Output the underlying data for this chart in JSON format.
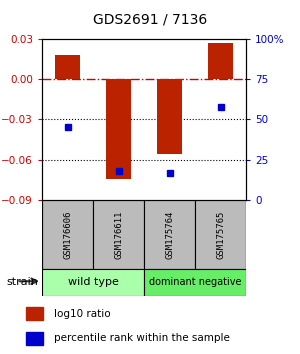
{
  "title": "GDS2691 / 7136",
  "samples": [
    "GSM176606",
    "GSM176611",
    "GSM175764",
    "GSM175765"
  ],
  "log10_ratio": [
    0.018,
    -0.074,
    -0.056,
    0.027
  ],
  "percentile_rank_pct": [
    45.5,
    17.8,
    16.5,
    57.5
  ],
  "bar_color": "#bb2200",
  "dot_color": "#0000cc",
  "ylim_left": [
    -0.09,
    0.03
  ],
  "ylim_right": [
    0,
    100
  ],
  "yticks_left": [
    -0.09,
    -0.06,
    -0.03,
    0,
    0.03
  ],
  "yticks_right": [
    0,
    25,
    50,
    75,
    100
  ],
  "zero_line_color": "#cc0000",
  "grid_color": "#000000",
  "left_tick_color": "#cc0000",
  "right_tick_color": "#0000cc",
  "bar_width": 0.5,
  "wt_color": "#aaffaa",
  "dn_color": "#66ee66",
  "sample_box_color": "#bbbbbb"
}
